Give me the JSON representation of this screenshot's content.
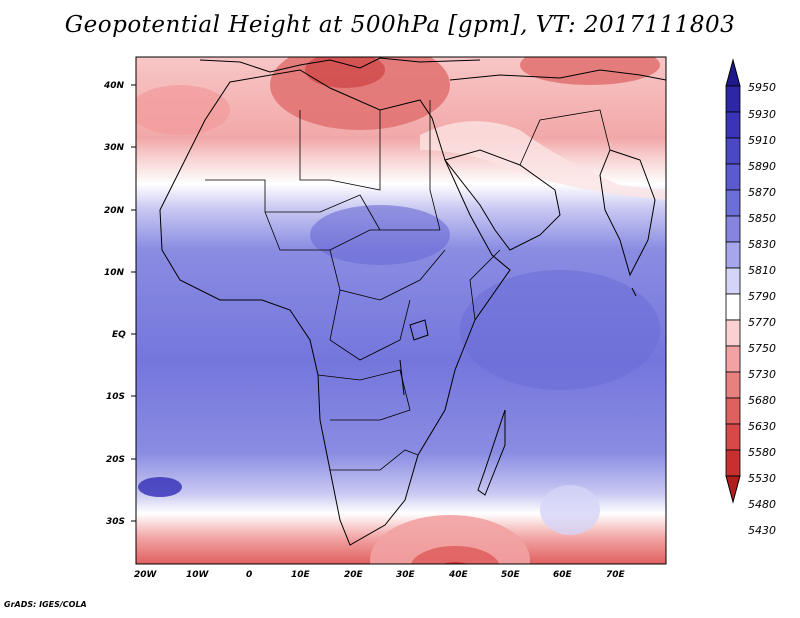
{
  "title": "Geopotential Height at 500hPa [gpm], VT: 2017111803",
  "footer": "GrADS: IGES/COLA",
  "lat_labels": [
    "40N",
    "30N",
    "20N",
    "10N",
    "EQ",
    "10S",
    "20S",
    "30S"
  ],
  "lon_labels": [
    "20W",
    "10W",
    "0",
    "10E",
    "20E",
    "30E",
    "40E",
    "50E",
    "60E",
    "70E"
  ],
  "colorbar": {
    "levels": [
      "5950",
      "5930",
      "5910",
      "5890",
      "5870",
      "5850",
      "5830",
      "5810",
      "5790",
      "5770",
      "5750",
      "5730",
      "5680",
      "5630",
      "5580",
      "5530",
      "5480",
      "5430"
    ],
    "colors": [
      "#1f1a8a",
      "#2d26a6",
      "#3a35b8",
      "#4a48c4",
      "#5b5bcf",
      "#6d6fd9",
      "#8585e0",
      "#a6a6ec",
      "#d4d4f8",
      "#ffffff",
      "#fbd0d0",
      "#f2a2a2",
      "#e98080",
      "#e06060",
      "#d84848",
      "#c83030",
      "#b01e1e"
    ]
  }
}
